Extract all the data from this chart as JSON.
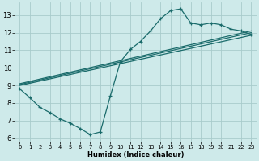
{
  "xlabel": "Humidex (Indice chaleur)",
  "bg_color": "#ceeaea",
  "grid_color": "#a8cccc",
  "line_color": "#1a6b6b",
  "xlim": [
    -0.5,
    23.5
  ],
  "ylim": [
    5.8,
    13.7
  ],
  "xticks": [
    0,
    1,
    2,
    3,
    4,
    5,
    6,
    7,
    8,
    9,
    10,
    11,
    12,
    13,
    14,
    15,
    16,
    17,
    18,
    19,
    20,
    21,
    22,
    23
  ],
  "yticks": [
    6,
    7,
    8,
    9,
    10,
    11,
    12,
    13
  ],
  "curve_x": [
    0,
    1,
    2,
    3,
    4,
    5,
    6,
    7,
    8,
    9,
    10,
    11,
    12,
    13,
    14,
    15,
    16,
    17,
    18,
    19,
    20,
    21,
    22,
    23
  ],
  "curve_y": [
    8.8,
    8.3,
    7.75,
    7.45,
    7.1,
    6.85,
    6.55,
    6.2,
    6.35,
    8.4,
    10.35,
    11.05,
    11.5,
    12.1,
    12.8,
    13.25,
    13.35,
    12.55,
    12.45,
    12.55,
    12.45,
    12.2,
    12.1,
    11.9
  ],
  "line1_x": [
    0,
    23
  ],
  "line1_y": [
    9.0,
    11.85
  ],
  "line2_x": [
    0,
    23
  ],
  "line2_y": [
    9.05,
    12.0
  ],
  "line3_x": [
    0,
    23
  ],
  "line3_y": [
    9.1,
    12.1
  ]
}
